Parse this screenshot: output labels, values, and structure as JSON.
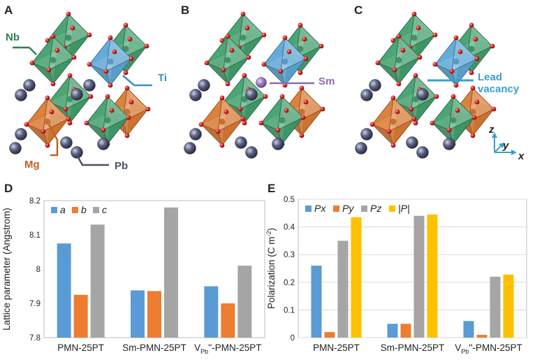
{
  "panels": {
    "A": "A",
    "B": "B",
    "C": "C",
    "D": "D",
    "E": "E"
  },
  "callouts": {
    "nb": "Nb",
    "ti": "Ti",
    "mg": "Mg",
    "pb": "Pb",
    "sm": "Sm",
    "lead_vacancy_line1": "Lead",
    "lead_vacancy_line2": "vacancy"
  },
  "axes_indicator": {
    "z": "z",
    "y": "y",
    "x": "x"
  },
  "colors": {
    "nb_green": "#3f9e6a",
    "ti_blue": "#5aa6d6",
    "mg_orange": "#d9772e",
    "pb_gray": "#4a4f6a",
    "oxygen_red": "#d42020",
    "sm_purple": "#8a6ab3",
    "callout_blue": "#3aa0cc",
    "series_blue": "#5b9bd5",
    "series_orange": "#ed7d31",
    "series_gray": "#a5a5a5",
    "series_yellow": "#ffc000"
  },
  "chart_data": [
    {
      "type": "bar",
      "panel": "D",
      "title": "",
      "xlabel": "",
      "ylabel": "Lattice parameter (Angstrom)",
      "ylim": [
        7.8,
        8.2
      ],
      "yticks": [
        "7.8",
        "7.9",
        "8",
        "8.1",
        "8.2"
      ],
      "categories": [
        {
          "main": "PMN-25PT",
          "sub": "",
          "suffix": ""
        },
        {
          "main": "Sm-PMN-25PT",
          "sub": "",
          "suffix": ""
        },
        {
          "main": "V",
          "sub": "Pb",
          "suffix": "''-PMN-25PT"
        }
      ],
      "legend_position": "top-left",
      "series": [
        {
          "name": "a",
          "values": [
            8.075,
            7.938,
            7.95
          ]
        },
        {
          "name": "b",
          "values": [
            7.925,
            7.936,
            7.9
          ]
        },
        {
          "name": "c",
          "values": [
            8.13,
            8.18,
            8.01
          ]
        }
      ]
    },
    {
      "type": "bar",
      "panel": "E",
      "title": "",
      "xlabel": "",
      "ylabel": "Polarization (C m",
      "ylabel_sup": "-2",
      "ylabel_end": ")",
      "ylim": [
        0,
        0.5
      ],
      "yticks": [
        "0",
        "0.1",
        "0.2",
        "0.3",
        "0.4",
        "0.5"
      ],
      "categories": [
        {
          "main": "PMN-25PT",
          "sub": "",
          "suffix": ""
        },
        {
          "main": "Sm-PMN-25PT",
          "sub": "",
          "suffix": ""
        },
        {
          "main": "V",
          "sub": "Pb",
          "suffix": "''-PMN-25PT"
        }
      ],
      "legend_position": "top-left",
      "series": [
        {
          "name": "Px",
          "values": [
            0.26,
            0.05,
            0.06
          ]
        },
        {
          "name": "Py",
          "values": [
            0.02,
            0.05,
            0.01
          ]
        },
        {
          "name": "Pz",
          "values": [
            0.35,
            0.44,
            0.22
          ]
        },
        {
          "name": "|P|",
          "values": [
            0.435,
            0.445,
            0.228
          ]
        }
      ]
    }
  ]
}
